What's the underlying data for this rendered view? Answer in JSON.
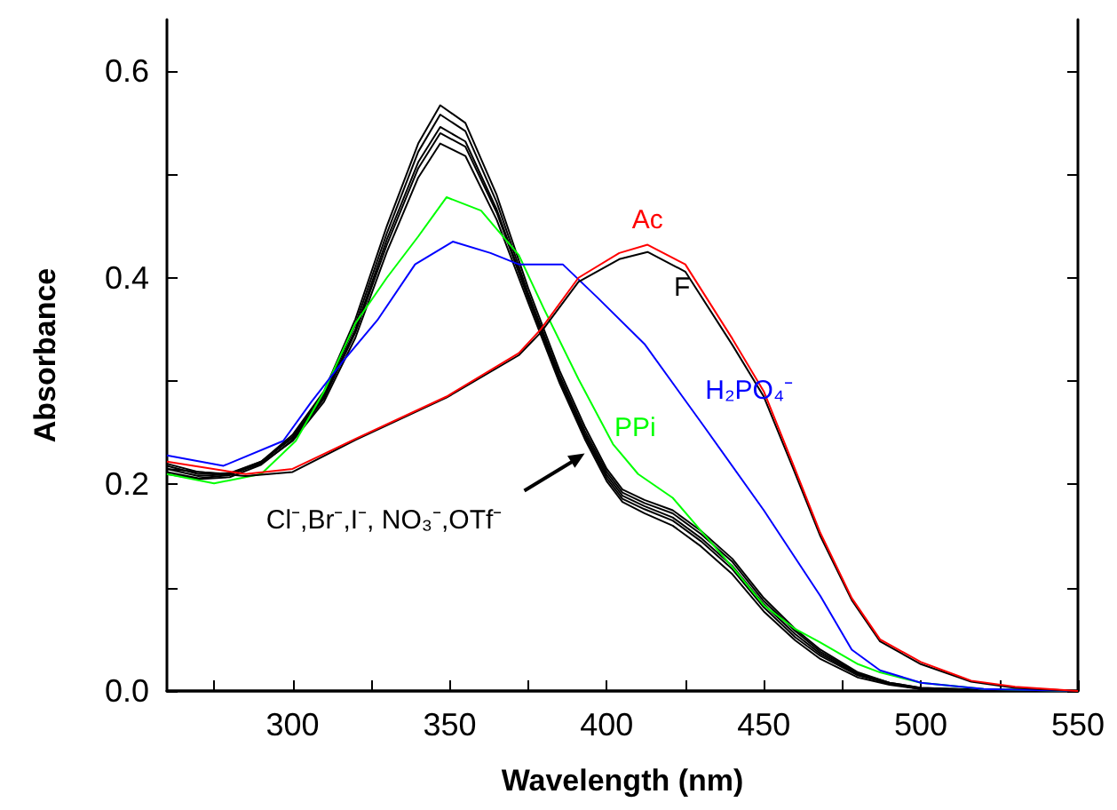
{
  "chart_data": {
    "type": "line",
    "xlabel": "Wavelength (nm)",
    "ylabel": "Absorbance",
    "xlim": [
      260,
      550
    ],
    "xticks": [
      {
        "value": 275,
        "label": null
      },
      300,
      {
        "value": 325,
        "label": null
      },
      350,
      {
        "value": 375,
        "label": null
      },
      400,
      {
        "value": 425,
        "label": null
      },
      450,
      {
        "value": 475,
        "label": null
      },
      500,
      {
        "value": 525,
        "label": null
      },
      550
    ],
    "ylim": [
      0,
      0.65
    ],
    "yticks": [
      {
        "value": 0,
        "label": "0.0"
      },
      {
        "value": 0.1,
        "label": null
      },
      {
        "value": 0.2,
        "label": "0.2"
      },
      {
        "value": 0.3,
        "label": null
      },
      {
        "value": 0.4,
        "label": "0.4"
      },
      {
        "value": 0.5,
        "label": null
      },
      {
        "value": 0.6,
        "label": "0.6"
      }
    ],
    "grid": false,
    "series": [
      {
        "color": "#000000",
        "x": [
          260,
          270,
          280,
          290,
          300,
          310,
          320,
          330,
          340,
          347,
          355,
          365,
          375,
          385,
          393,
          400,
          405,
          412,
          421,
          430,
          440,
          450,
          460,
          468,
          480,
          490,
          500,
          520,
          550
        ],
        "values": [
          0.215,
          0.208,
          0.21,
          0.222,
          0.248,
          0.29,
          0.36,
          0.45,
          0.53,
          0.567,
          0.55,
          0.48,
          0.39,
          0.31,
          0.256,
          0.215,
          0.195,
          0.185,
          0.175,
          0.155,
          0.128,
          0.09,
          0.06,
          0.04,
          0.018,
          0.008,
          0.003,
          0.001,
          0
        ]
      },
      {
        "color": "#000000",
        "x": [
          260,
          270,
          280,
          290,
          300,
          310,
          320,
          330,
          340,
          347,
          355,
          365,
          375,
          385,
          393,
          400,
          405,
          412,
          421,
          430,
          440,
          450,
          460,
          468,
          480,
          490,
          500,
          520,
          550
        ],
        "values": [
          0.212,
          0.206,
          0.209,
          0.221,
          0.246,
          0.287,
          0.355,
          0.443,
          0.522,
          0.558,
          0.542,
          0.473,
          0.385,
          0.306,
          0.252,
          0.212,
          0.192,
          0.182,
          0.172,
          0.152,
          0.125,
          0.087,
          0.058,
          0.038,
          0.017,
          0.008,
          0.003,
          0.001,
          0
        ]
      },
      {
        "color": "#000000",
        "x": [
          260,
          270,
          280,
          290,
          300,
          310,
          320,
          330,
          340,
          347,
          355,
          365,
          375,
          385,
          393,
          400,
          405,
          412,
          421,
          430,
          440,
          450,
          460,
          468,
          480,
          490,
          500,
          520,
          550
        ],
        "values": [
          0.218,
          0.21,
          0.211,
          0.222,
          0.245,
          0.285,
          0.35,
          0.437,
          0.512,
          0.546,
          0.532,
          0.466,
          0.382,
          0.303,
          0.249,
          0.209,
          0.189,
          0.179,
          0.168,
          0.148,
          0.121,
          0.084,
          0.055,
          0.036,
          0.016,
          0.007,
          0.002,
          0.001,
          0
        ]
      },
      {
        "color": "#000000",
        "x": [
          260,
          270,
          280,
          290,
          300,
          310,
          320,
          330,
          340,
          347,
          355,
          365,
          375,
          385,
          393,
          400,
          405,
          412,
          421,
          430,
          440,
          450,
          460,
          468,
          480,
          490,
          500,
          520,
          550
        ],
        "values": [
          0.21,
          0.205,
          0.207,
          0.219,
          0.243,
          0.283,
          0.347,
          0.432,
          0.506,
          0.54,
          0.527,
          0.463,
          0.38,
          0.301,
          0.247,
          0.206,
          0.186,
          0.176,
          0.165,
          0.145,
          0.118,
          0.081,
          0.052,
          0.034,
          0.015,
          0.007,
          0.002,
          0.001,
          0
        ]
      },
      {
        "color": "#000000",
        "x": [
          260,
          270,
          280,
          290,
          300,
          310,
          320,
          330,
          340,
          347,
          355,
          365,
          375,
          385,
          393,
          400,
          405,
          412,
          421,
          430,
          440,
          450,
          460,
          468,
          480,
          490,
          500,
          520,
          550
        ],
        "values": [
          0.22,
          0.212,
          0.21,
          0.22,
          0.242,
          0.28,
          0.342,
          0.425,
          0.497,
          0.53,
          0.518,
          0.456,
          0.376,
          0.298,
          0.244,
          0.203,
          0.183,
          0.172,
          0.16,
          0.14,
          0.113,
          0.077,
          0.049,
          0.031,
          0.013,
          0.006,
          0.002,
          0.001,
          0
        ]
      },
      {
        "color": "#00ff00",
        "x": [
          260,
          275,
          290,
          301,
          310,
          320,
          330,
          340,
          349,
          360,
          372,
          380,
          391,
          402,
          410,
          421,
          430,
          440,
          450,
          460,
          468,
          480,
          487,
          500,
          520,
          550
        ],
        "values": [
          0.21,
          0.201,
          0.21,
          0.242,
          0.29,
          0.356,
          0.4,
          0.44,
          0.478,
          0.465,
          0.422,
          0.37,
          0.302,
          0.239,
          0.21,
          0.187,
          0.155,
          0.12,
          0.083,
          0.06,
          0.047,
          0.026,
          0.018,
          0.008,
          0.002,
          0
        ]
      },
      {
        "color": "#0000ff",
        "x": [
          260,
          278,
          297,
          306,
          316,
          327,
          339,
          351,
          363,
          372,
          386,
          397,
          412,
          431,
          450,
          468,
          478,
          487,
          500,
          520,
          550
        ],
        "values": [
          0.228,
          0.218,
          0.242,
          0.28,
          0.319,
          0.359,
          0.413,
          0.435,
          0.424,
          0.413,
          0.413,
          0.381,
          0.336,
          0.256,
          0.175,
          0.092,
          0.04,
          0.02,
          0.008,
          0.002,
          0
        ]
      },
      {
        "color": "#000000",
        "x": [
          260,
          285,
          300,
          320,
          349,
          372,
          379,
          391,
          404,
          413,
          425,
          440,
          450,
          459,
          468,
          478,
          487,
          500,
          516,
          530,
          550
        ],
        "values": [
          0.215,
          0.208,
          0.212,
          0.243,
          0.284,
          0.325,
          0.347,
          0.396,
          0.418,
          0.425,
          0.406,
          0.335,
          0.285,
          0.218,
          0.15,
          0.088,
          0.048,
          0.026,
          0.009,
          0.003,
          0
        ]
      },
      {
        "color": "#ff0000",
        "x": [
          260,
          285,
          300,
          320,
          349,
          372,
          379,
          391,
          404,
          413,
          425,
          440,
          450,
          459,
          468,
          478,
          487,
          500,
          516,
          530,
          550
        ],
        "values": [
          0.222,
          0.21,
          0.215,
          0.244,
          0.285,
          0.327,
          0.35,
          0.4,
          0.424,
          0.432,
          0.413,
          0.341,
          0.29,
          0.222,
          0.153,
          0.09,
          0.05,
          0.028,
          0.01,
          0.004,
          0
        ]
      }
    ],
    "annotations": [
      {
        "text": "Ac",
        "x": 413,
        "y": 0.432
      },
      {
        "text": "F",
        "x": 420,
        "y": 0.414
      },
      {
        "text": "H₂PO₄⁻",
        "x": 425,
        "y": 0.281
      },
      {
        "text": "PPi",
        "x": 400,
        "y": 0.251
      },
      {
        "text": "Cl⁻,Br⁻,I⁻, NO₃⁻,OTf⁻",
        "x": 393,
        "y": 0.23
      }
    ]
  }
}
